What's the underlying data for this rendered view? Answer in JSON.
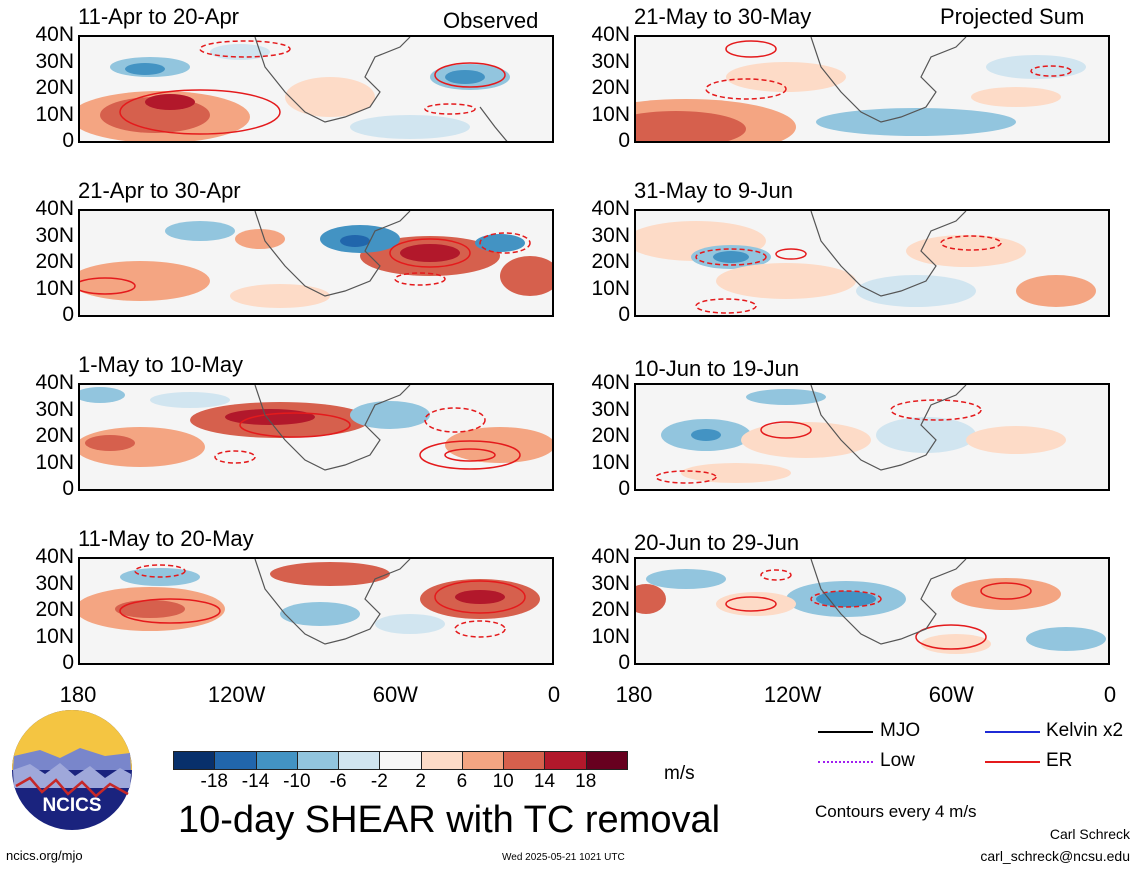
{
  "panels_left": [
    {
      "period": "11-Apr to 20-Apr",
      "corner_label": "Observed"
    },
    {
      "period": "21-Apr to 30-Apr",
      "corner_label": ""
    },
    {
      "period": "1-May to 10-May",
      "corner_label": ""
    },
    {
      "period": "11-May to 20-May",
      "corner_label": ""
    }
  ],
  "panels_right": [
    {
      "period": "21-May to 30-May",
      "corner_label": "Projected Sum"
    },
    {
      "period": "31-May to 9-Jun",
      "corner_label": ""
    },
    {
      "period": "10-Jun to 19-Jun",
      "corner_label": ""
    },
    {
      "period": "20-Jun to 29-Jun",
      "corner_label": ""
    }
  ],
  "lat_ticks": [
    "40N",
    "30N",
    "20N",
    "10N",
    "0"
  ],
  "lon_ticks": [
    "180",
    "120W",
    "60W",
    "0"
  ],
  "colorbar": {
    "labels": [
      "-18",
      "-14",
      "-10",
      "-6",
      "-2",
      "2",
      "6",
      "10",
      "14",
      "18"
    ],
    "colors": [
      "#08306b",
      "#2166ac",
      "#4393c3",
      "#92c5de",
      "#d1e5f0",
      "#f7f7f7",
      "#fddbc7",
      "#f4a582",
      "#d6604d",
      "#b2182b",
      "#67001f"
    ],
    "units": "m/s"
  },
  "title": "10-day SHEAR with TC removal",
  "legend": {
    "items": [
      {
        "label": "MJO",
        "color": "#000000",
        "style": "solid"
      },
      {
        "label": "Kelvin x2",
        "color": "#1f2bd6",
        "style": "solid"
      },
      {
        "label": "Low",
        "color": "#a020f0",
        "style": "dotted"
      },
      {
        "label": "ER",
        "color": "#e41a1c",
        "style": "solid"
      }
    ],
    "note": "Contours every 4 m/s"
  },
  "logo": {
    "text": "NCICS"
  },
  "footer": {
    "url": "ncics.org/mjo",
    "timestamp": "Wed 2025-05-21 1021 UTC",
    "author": "Carl Schreck",
    "email": "carl_schreck@ncsu.edu"
  }
}
